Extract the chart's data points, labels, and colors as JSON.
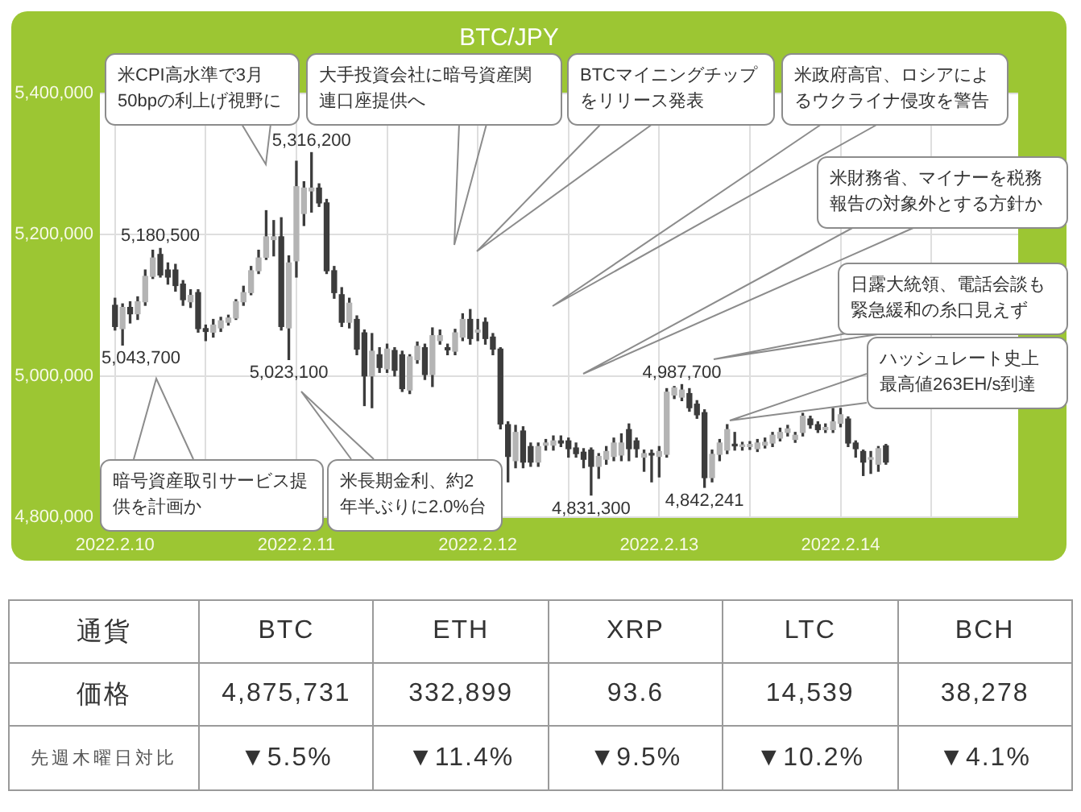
{
  "chart_data": [
    {
      "type": "candlestick",
      "title": "BTC/JPY",
      "x": [
        "2022-02-10T00:00",
        "2022-02-10T01:00",
        "2022-02-10T02:00",
        "2022-02-10T03:00",
        "2022-02-10T04:00",
        "2022-02-10T05:00",
        "2022-02-10T06:00",
        "2022-02-10T07:00",
        "2022-02-10T08:00",
        "2022-02-10T09:00",
        "2022-02-10T10:00",
        "2022-02-10T11:00",
        "2022-02-10T12:00",
        "2022-02-10T13:00",
        "2022-02-10T14:00",
        "2022-02-10T15:00",
        "2022-02-10T16:00",
        "2022-02-10T17:00",
        "2022-02-10T18:00",
        "2022-02-10T19:00",
        "2022-02-10T20:00",
        "2022-02-10T21:00",
        "2022-02-10T22:00",
        "2022-02-10T23:00",
        "2022-02-11T00:00",
        "2022-02-11T01:00",
        "2022-02-11T02:00",
        "2022-02-11T03:00",
        "2022-02-11T04:00",
        "2022-02-11T05:00",
        "2022-02-11T06:00",
        "2022-02-11T07:00",
        "2022-02-11T08:00",
        "2022-02-11T09:00",
        "2022-02-11T10:00",
        "2022-02-11T11:00",
        "2022-02-11T12:00",
        "2022-02-11T13:00",
        "2022-02-11T14:00",
        "2022-02-11T15:00",
        "2022-02-11T16:00",
        "2022-02-11T17:00",
        "2022-02-11T18:00",
        "2022-02-11T19:00",
        "2022-02-11T20:00",
        "2022-02-11T21:00",
        "2022-02-11T22:00",
        "2022-02-11T23:00",
        "2022-02-12T00:00",
        "2022-02-12T01:00",
        "2022-02-12T02:00",
        "2022-02-12T03:00",
        "2022-02-12T04:00",
        "2022-02-12T05:00",
        "2022-02-12T06:00",
        "2022-02-12T07:00",
        "2022-02-12T08:00",
        "2022-02-12T09:00",
        "2022-02-12T10:00",
        "2022-02-12T11:00",
        "2022-02-12T12:00",
        "2022-02-12T13:00",
        "2022-02-12T14:00",
        "2022-02-12T15:00",
        "2022-02-12T16:00",
        "2022-02-12T17:00",
        "2022-02-12T18:00",
        "2022-02-12T19:00",
        "2022-02-12T20:00",
        "2022-02-12T21:00",
        "2022-02-12T22:00",
        "2022-02-12T23:00",
        "2022-02-13T00:00",
        "2022-02-13T01:00",
        "2022-02-13T02:00",
        "2022-02-13T03:00",
        "2022-02-13T04:00",
        "2022-02-13T05:00",
        "2022-02-13T06:00",
        "2022-02-13T07:00",
        "2022-02-13T08:00",
        "2022-02-13T09:00",
        "2022-02-13T10:00",
        "2022-02-13T11:00",
        "2022-02-13T12:00",
        "2022-02-13T13:00",
        "2022-02-13T14:00",
        "2022-02-13T15:00",
        "2022-02-13T16:00",
        "2022-02-13T17:00",
        "2022-02-13T18:00",
        "2022-02-13T19:00",
        "2022-02-13T20:00",
        "2022-02-13T21:00",
        "2022-02-13T22:00",
        "2022-02-13T23:00",
        "2022-02-14T00:00",
        "2022-02-14T01:00",
        "2022-02-14T02:00",
        "2022-02-14T03:00",
        "2022-02-14T04:00",
        "2022-02-14T05:00",
        "2022-02-14T06:00"
      ],
      "ohlc": [
        [
          5100000,
          5110000,
          5065000,
          5070000
        ],
        [
          5067000,
          5102000,
          5043700,
          5097000
        ],
        [
          5097000,
          5105000,
          5075000,
          5088000
        ],
        [
          5088000,
          5112000,
          5080000,
          5105000
        ],
        [
          5105000,
          5150000,
          5100000,
          5141000
        ],
        [
          5141000,
          5178000,
          5138000,
          5167000
        ],
        [
          5172000,
          5180500,
          5140000,
          5143000
        ],
        [
          5150000,
          5160000,
          5130000,
          5140000
        ],
        [
          5150000,
          5158000,
          5120000,
          5128000
        ],
        [
          5130000,
          5135000,
          5100000,
          5108000
        ],
        [
          5105000,
          5122000,
          5097000,
          5114000
        ],
        [
          5118000,
          5122000,
          5062000,
          5067000
        ],
        [
          5067000,
          5072000,
          5050000,
          5063000
        ],
        [
          5062000,
          5080000,
          5055000,
          5072000
        ],
        [
          5068000,
          5083000,
          5063000,
          5078000
        ],
        [
          5076000,
          5086000,
          5072000,
          5082000
        ],
        [
          5082000,
          5108000,
          5080000,
          5105000
        ],
        [
          5105000,
          5127000,
          5100000,
          5118000
        ],
        [
          5118000,
          5155000,
          5115000,
          5149000
        ],
        [
          5149000,
          5178000,
          5145000,
          5167000
        ],
        [
          5168000,
          5234000,
          5165000,
          5197000
        ],
        [
          5193000,
          5220000,
          5170000,
          5197000
        ],
        [
          5197000,
          5224000,
          5065000,
          5070000
        ],
        [
          5068000,
          5170000,
          5023100,
          5160000
        ],
        [
          5163000,
          5304000,
          5140000,
          5268000
        ],
        [
          5230000,
          5275000,
          5213000,
          5266000
        ],
        [
          5262000,
          5316200,
          5232000,
          5266000
        ],
        [
          5266000,
          5272000,
          5240000,
          5245000
        ],
        [
          5245000,
          5250000,
          5145000,
          5149000
        ],
        [
          5149000,
          5155000,
          5110000,
          5118000
        ],
        [
          5115000,
          5125000,
          5070000,
          5076000
        ],
        [
          5076000,
          5110000,
          5068000,
          5103000
        ],
        [
          5080000,
          5085000,
          5030000,
          5038000
        ],
        [
          5061000,
          5065000,
          4958000,
          5000000
        ],
        [
          5000000,
          5060000,
          4955000,
          5035000
        ],
        [
          5030000,
          5040000,
          5005000,
          5012000
        ],
        [
          5010000,
          5045000,
          5005000,
          5038000
        ],
        [
          5036000,
          5040000,
          5000000,
          5008000
        ],
        [
          5030000,
          5035000,
          4978000,
          4982000
        ],
        [
          4980000,
          5030000,
          4975000,
          5027000
        ],
        [
          5023000,
          5048000,
          5018000,
          5042000
        ],
        [
          5040000,
          5045000,
          4995000,
          5002000
        ],
        [
          5002000,
          5068000,
          4985000,
          5057000
        ],
        [
          5050000,
          5065000,
          5045000,
          5057000
        ],
        [
          5040000,
          5045000,
          5030000,
          5037000
        ],
        [
          5035000,
          5066000,
          5030000,
          5061000
        ],
        [
          5055000,
          5088000,
          5050000,
          5080000
        ],
        [
          5080000,
          5094000,
          5045000,
          5053000
        ],
        [
          5062000,
          5080000,
          5050000,
          5065000
        ],
        [
          5076000,
          5082000,
          5045000,
          5053000
        ],
        [
          5055000,
          5060000,
          5030000,
          5038000
        ],
        [
          5038000,
          5040000,
          4925000,
          4932000
        ],
        [
          4931000,
          4935000,
          4850000,
          4886000
        ],
        [
          4880000,
          4930000,
          4870000,
          4920000
        ],
        [
          4922000,
          4928000,
          4870000,
          4878000
        ],
        [
          4900000,
          4905000,
          4872000,
          4878000
        ],
        [
          4878000,
          4905000,
          4872000,
          4900000
        ],
        [
          4902000,
          4910000,
          4895000,
          4905000
        ],
        [
          4902000,
          4915000,
          4895000,
          4908000
        ],
        [
          4908000,
          4915000,
          4900000,
          4905000
        ],
        [
          4908000,
          4912000,
          4885000,
          4897000
        ],
        [
          4898000,
          4905000,
          4885000,
          4890000
        ],
        [
          4892000,
          4897000,
          4870000,
          4882000
        ],
        [
          4895000,
          4898000,
          4831300,
          4872000
        ],
        [
          4872000,
          4890000,
          4855000,
          4886000
        ],
        [
          4882000,
          4900000,
          4875000,
          4893000
        ],
        [
          4886000,
          4912000,
          4880000,
          4905000
        ],
        [
          4888000,
          4918000,
          4880000,
          4905000
        ],
        [
          4924000,
          4932000,
          4880000,
          4897000
        ],
        [
          4908000,
          4912000,
          4885000,
          4897000
        ],
        [
          4885000,
          4895000,
          4865000,
          4890000
        ],
        [
          4890000,
          4895000,
          4850000,
          4888000
        ],
        [
          4886000,
          4900000,
          4857000,
          4893000
        ],
        [
          4889000,
          4982000,
          4885000,
          4977000
        ],
        [
          4973000,
          4985000,
          4968000,
          4983000
        ],
        [
          4970000,
          4987700,
          4965000,
          4980000
        ],
        [
          4975000,
          4982000,
          4950000,
          4955000
        ],
        [
          4960000,
          4965000,
          4940000,
          4945000
        ],
        [
          4948000,
          4952000,
          4842241,
          4856000
        ],
        [
          4856000,
          4895000,
          4850000,
          4889000
        ],
        [
          4889000,
          4910000,
          4880000,
          4905000
        ],
        [
          4895000,
          4931000,
          4890000,
          4924000
        ],
        [
          4903000,
          4920000,
          4895000,
          4901000
        ],
        [
          4900000,
          4906000,
          4895000,
          4902000
        ],
        [
          4900000,
          4907000,
          4896000,
          4903000
        ],
        [
          4897000,
          4910000,
          4893000,
          4905000
        ],
        [
          4902000,
          4912000,
          4898000,
          4906000
        ],
        [
          4905000,
          4920000,
          4900000,
          4916000
        ],
        [
          4912000,
          4926000,
          4908000,
          4920000
        ],
        [
          4920000,
          4930000,
          4915000,
          4925000
        ],
        [
          4910000,
          4920000,
          4906000,
          4916000
        ],
        [
          4920000,
          4947000,
          4915000,
          4943000
        ],
        [
          4939000,
          4943000,
          4926000,
          4931000
        ],
        [
          4931000,
          4935000,
          4920000,
          4924000
        ],
        [
          4924000,
          4932000,
          4920000,
          4927000
        ],
        [
          4924000,
          4954000,
          4920000,
          4935000
        ],
        [
          4933000,
          4954000,
          4928000,
          4945000
        ],
        [
          4939000,
          4942000,
          4900000,
          4905000
        ],
        [
          4905000,
          4908000,
          4885000,
          4897000
        ],
        [
          4893000,
          4895000,
          4859000,
          4878000
        ],
        [
          4882000,
          4893000,
          4862000,
          4883000
        ],
        [
          4875000,
          4900000,
          4865000,
          4897000
        ],
        [
          4901000,
          4903000,
          4875000,
          4878000
        ]
      ],
      "color": "#3c3c3c",
      "colors": [
        "#3c3c3c",
        "#b4b4b4",
        "#3c3c3c",
        "#b4b4b4",
        "#b4b4b4",
        "#b4b4b4",
        "#3c3c3c",
        "#3c3c3c",
        "#3c3c3c",
        "#3c3c3c",
        "#b4b4b4",
        "#3c3c3c",
        "#3c3c3c",
        "#b4b4b4",
        "#b4b4b4",
        "#b4b4b4",
        "#b4b4b4",
        "#b4b4b4",
        "#b4b4b4",
        "#b4b4b4",
        "#b4b4b4",
        "#b4b4b4",
        "#3c3c3c",
        "#b4b4b4",
        "#b4b4b4",
        "#b4b4b4",
        "#b4b4b4",
        "#3c3c3c",
        "#3c3c3c",
        "#3c3c3c",
        "#3c3c3c",
        "#b4b4b4",
        "#3c3c3c",
        "#3c3c3c",
        "#b4b4b4",
        "#3c3c3c",
        "#b4b4b4",
        "#3c3c3c",
        "#3c3c3c",
        "#b4b4b4",
        "#b4b4b4",
        "#3c3c3c",
        "#b4b4b4",
        "#b4b4b4",
        "#3c3c3c",
        "#b4b4b4",
        "#b4b4b4",
        "#3c3c3c",
        "#b4b4b4",
        "#3c3c3c",
        "#3c3c3c",
        "#3c3c3c",
        "#3c3c3c",
        "#b4b4b4",
        "#3c3c3c",
        "#3c3c3c",
        "#b4b4b4",
        "#b4b4b4",
        "#b4b4b4",
        "#3c3c3c",
        "#3c3c3c",
        "#3c3c3c",
        "#3c3c3c",
        "#3c3c3c",
        "#b4b4b4",
        "#b4b4b4",
        "#b4b4b4",
        "#b4b4b4",
        "#3c3c3c",
        "#3c3c3c",
        "#b4b4b4",
        "#3c3c3c",
        "#b4b4b4",
        "#b4b4b4",
        "#b4b4b4",
        "#b4b4b4",
        "#3c3c3c",
        "#3c3c3c",
        "#3c3c3c",
        "#b4b4b4",
        "#b4b4b4",
        "#b4b4b4",
        "#3c3c3c",
        "#b4b4b4",
        "#b4b4b4",
        "#b4b4b4",
        "#b4b4b4",
        "#b4b4b4",
        "#b4b4b4",
        "#b4b4b4",
        "#b4b4b4",
        "#b4b4b4",
        "#3c3c3c",
        "#3c3c3c",
        "#b4b4b4",
        "#b4b4b4",
        "#b4b4b4",
        "#3c3c3c",
        "#3c3c3c",
        "#3c3c3c",
        "#b4b4b4",
        "#b4b4b4",
        "#3c3c3c"
      ],
      "xlim": [
        "2022-02-09T22:00",
        "2022-02-14T23:30"
      ],
      "xticks": [
        {
          "value": "2022-02-10",
          "label": "2022.2.10"
        },
        {
          "value": "2022-02-10T12:00",
          "label": null
        },
        {
          "value": "2022-02-11",
          "label": "2022.2.11"
        },
        {
          "value": "2022-02-11T12:00",
          "label": null
        },
        {
          "value": "2022-02-12",
          "label": "2022.2.12"
        },
        {
          "value": "2022-02-12T12:00",
          "label": null
        },
        {
          "value": "2022-02-13",
          "label": "2022.2.13"
        },
        {
          "value": "2022-02-13T12:00",
          "label": null
        },
        {
          "value": "2022-02-14",
          "label": "2022.2.14"
        },
        {
          "value": "2022-02-14T12:00",
          "label": null
        }
      ],
      "ylim": [
        4800000,
        5400000
      ],
      "yticks": [
        {
          "value": 4800000,
          "label": "4,800,000"
        },
        {
          "value": 5000000,
          "label": "5,000,000"
        },
        {
          "value": 5200000,
          "label": "5,200,000"
        },
        {
          "value": 5400000,
          "label": "5,400,000"
        }
      ],
      "grid": true,
      "annotations": [
        "米CPI高水準で3月50bpの利上げ視野に",
        "大手投資会社に暗号資産関連口座提供へ",
        "BTCマイニングチップをリリース発表",
        "米政府高官、ロシアによるウクライナ侵攻を警告",
        "米財務省、マイナーを税務報告の対象外とする方針か",
        "日露大統領、電話会談も緊急緩和の糸口見えず",
        "ハッシュレート史上最高値263EH/s到達",
        "暗号資産取引サービス提供を計画か",
        "米長期金利、約2年半ぶりに2.0%台",
        {
          "text": "5,316,200",
          "x": "2022-02-11T02:00",
          "y": 5316200
        },
        {
          "text": "5,180,500",
          "x": "2022-02-10T06:00",
          "y": 5180500
        },
        {
          "text": "5,043,700",
          "x": "2022-02-10T01:00",
          "y": 5043700
        },
        {
          "text": "5,023,100",
          "x": "2022-02-10T23:00",
          "y": 5023100
        },
        {
          "text": "4,987,700",
          "x": "2022-02-13T03:00",
          "y": 4987700
        },
        {
          "text": "4,831,300",
          "x": "2022-02-12T15:00",
          "y": 4831300
        },
        {
          "text": "4,842,241",
          "x": "2022-02-13T06:00",
          "y": 4842241
        }
      ]
    },
    {
      "type": "other",
      "xlabel": "通貨",
      "categories": [
        "BTC",
        "ETH",
        "XRP",
        "LTC",
        "BCH"
      ],
      "series": [
        {
          "name": "価格",
          "values": [
            4875731,
            332899,
            93.6,
            14539,
            38278
          ],
          "value_labels": [
            "4,875,731",
            "332,899",
            "93.6",
            "14,539",
            "38,278"
          ]
        },
        {
          "name": "先週木曜日対比",
          "values": [
            5.5,
            11.4,
            9.5,
            10.2,
            4.1
          ],
          "value_labels": [
            "▼5.5%",
            "▼11.4%",
            "▼9.5%",
            "▼10.2%",
            "▼4.1%"
          ]
        }
      ]
    }
  ]
}
